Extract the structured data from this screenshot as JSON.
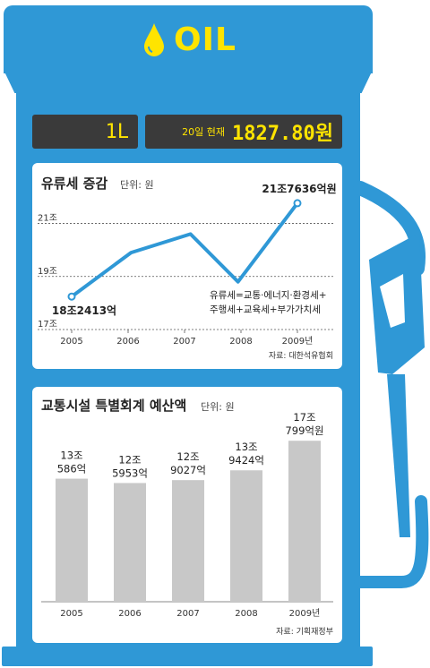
{
  "header": {
    "title": "OIL",
    "icon": "oil-drop-icon"
  },
  "display": {
    "unit": "1L",
    "date_label": "20일 현재",
    "price": "1827.80원"
  },
  "charts_text": {
    "line_title": "유류세 증감",
    "line_unit": "단위: 원",
    "line_note_line1": "유류세=교통·에너지·환경세+",
    "line_note_line2": "주행세+교육세+부가가치세",
    "line_source": "자료: 대한석유협회",
    "bar_title": "교통시설 특별회계 예산액",
    "bar_unit": "단위: 원",
    "bar_source": "자료: 기획재정부"
  },
  "colors": {
    "pump": "#2f98d6",
    "lcd_bg": "#3a3a3a",
    "lcd_text": "#ffe400",
    "line": "#2f98d6",
    "bar": "#c8c8c8"
  },
  "chart_data": [
    {
      "type": "line",
      "title": "유류세 증감",
      "ylabel": "단위: 원",
      "x_ticks": [
        "2005",
        "2006",
        "2007",
        "2008",
        "2009년"
      ],
      "y_ticks": [
        "17조",
        "19조",
        "21조"
      ],
      "ylim": [
        17,
        22.2
      ],
      "grid": true,
      "points": [
        {
          "x": 2005.0,
          "y": 18.2413
        },
        {
          "x": 2006.0,
          "y": 19.9
        },
        {
          "x": 2007.0,
          "y": 20.6
        },
        {
          "x": 2007.8,
          "y": 18.8
        },
        {
          "x": 2008.8,
          "y": 21.7636
        }
      ],
      "labels": [
        {
          "point": 0,
          "text": "18조2413억",
          "pos": "below"
        },
        {
          "point": 4,
          "text": "21조7636억원",
          "pos": "above"
        }
      ]
    },
    {
      "type": "bar",
      "title": "교통시설 특별회계 예산액",
      "ylabel": "단위: 원",
      "categories": [
        "2005",
        "2006",
        "2007",
        "2008",
        "2009년"
      ],
      "values": [
        13.0586,
        12.5953,
        12.9027,
        13.9424,
        17.0799
      ],
      "ylim": [
        0,
        19
      ],
      "value_labels": [
        [
          "13조",
          "586억"
        ],
        [
          "12조",
          "5953억"
        ],
        [
          "12조",
          "9027억"
        ],
        [
          "13조",
          "9424억"
        ],
        [
          "17조",
          "799억원"
        ]
      ]
    }
  ]
}
